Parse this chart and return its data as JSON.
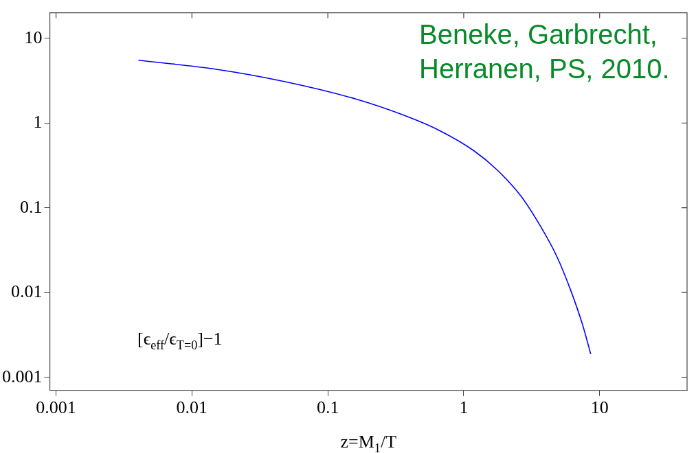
{
  "chart_data": {
    "type": "line",
    "xlabel": "z=M$_{1}$/T",
    "log": "xy",
    "grid": false,
    "legend": false,
    "xlim": [
      0.0009,
      44
    ],
    "xticks": [
      0.001,
      0.01,
      0.1,
      1,
      10
    ],
    "ylim": [
      0.0007,
      20
    ],
    "yticks": [
      0.001,
      0.01,
      0.1,
      1,
      10
    ],
    "x": [
      0.00404,
      0.0143,
      0.0477,
      0.159,
      0.356,
      0.649,
      1.19,
      1.76,
      2.65,
      3.63,
      4.84,
      6.17,
      7.48,
      8.6
    ],
    "series": [
      {
        "color": "#0000ff",
        "values": [
          5.5,
          4.36,
          3.09,
          1.93,
          1.25,
          0.83,
          0.47,
          0.28,
          0.136,
          0.0625,
          0.0267,
          0.0103,
          0.0042,
          0.00188
        ]
      }
    ],
    "annotations": [
      "Beneke, Garbrecht,\nHerranen, PS, 2010.",
      "[ϵ$_{eff}$/ϵ$_{T=0}$]−1"
    ]
  }
}
